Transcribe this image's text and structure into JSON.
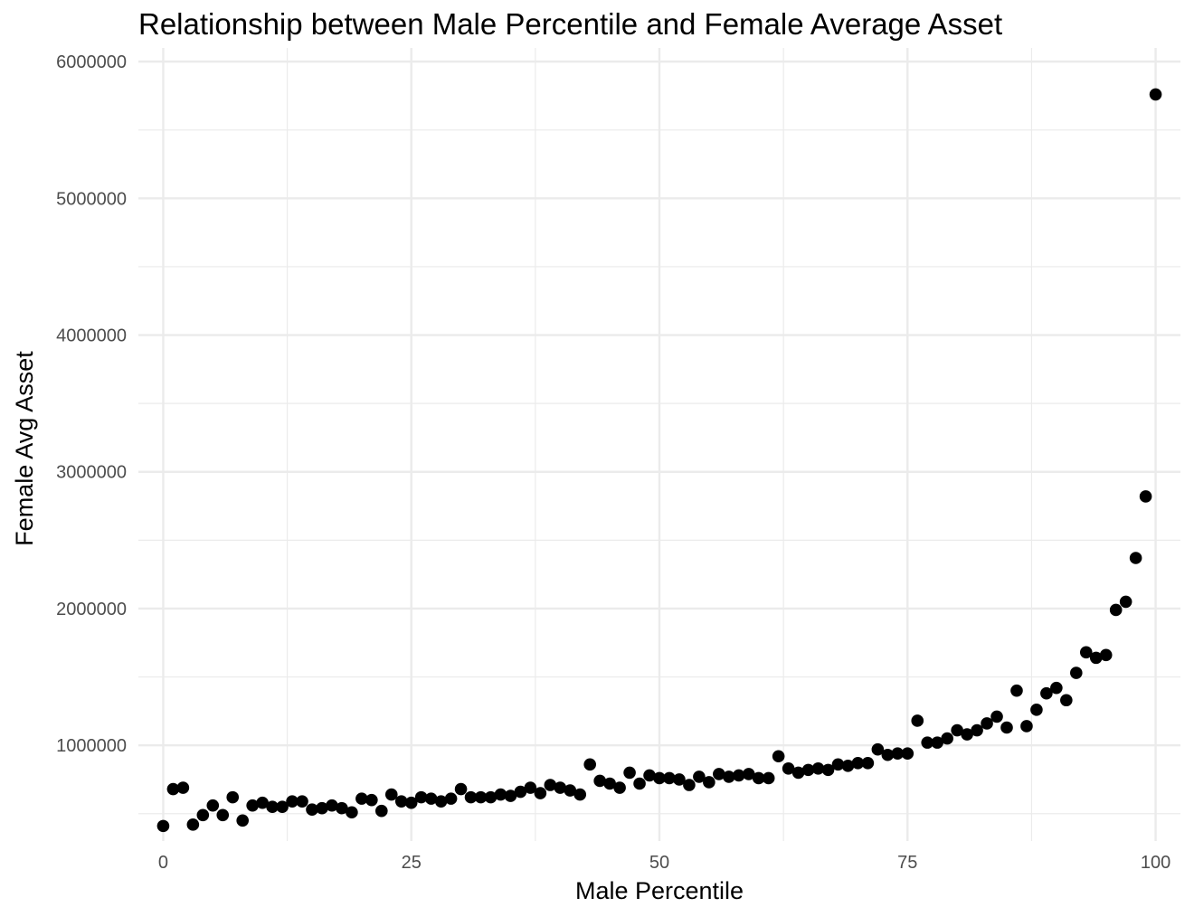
{
  "chart_data": {
    "type": "scatter",
    "title": "Relationship between Male Percentile and Female Average Asset",
    "xlabel": "Male Percentile",
    "ylabel": "Female Avg Asset",
    "xlim": [
      -2.5,
      102.5
    ],
    "ylim": [
      300000,
      6100000
    ],
    "x_ticks": [
      0,
      25,
      50,
      75,
      100
    ],
    "x_tick_labels": [
      "0",
      "25",
      "50",
      "75",
      "100"
    ],
    "x_minor_ticks": [
      12.5,
      37.5,
      62.5,
      87.5
    ],
    "y_ticks": [
      1000000,
      2000000,
      3000000,
      4000000,
      5000000,
      6000000
    ],
    "y_tick_labels": [
      "1000000",
      "2000000",
      "3000000",
      "4000000",
      "5000000",
      "6000000"
    ],
    "y_minor_ticks": [
      500000,
      1500000,
      2500000,
      3500000,
      4500000,
      5500000
    ],
    "grid": true,
    "legend": "none",
    "point_color": "#000000",
    "x": [
      0,
      1,
      2,
      3,
      4,
      5,
      6,
      7,
      8,
      9,
      10,
      11,
      12,
      13,
      14,
      15,
      16,
      17,
      18,
      19,
      20,
      21,
      22,
      23,
      24,
      25,
      26,
      27,
      28,
      29,
      30,
      31,
      32,
      33,
      34,
      35,
      36,
      37,
      38,
      39,
      40,
      41,
      42,
      43,
      44,
      45,
      46,
      47,
      48,
      49,
      50,
      51,
      52,
      53,
      54,
      55,
      56,
      57,
      58,
      59,
      60,
      61,
      62,
      63,
      64,
      65,
      66,
      67,
      68,
      69,
      70,
      71,
      72,
      73,
      74,
      75,
      76,
      77,
      78,
      79,
      80,
      81,
      82,
      83,
      84,
      85,
      86,
      87,
      88,
      89,
      90,
      91,
      92,
      93,
      94,
      95,
      96,
      97,
      98,
      99,
      100
    ],
    "y": [
      410000,
      680000,
      690000,
      420000,
      490000,
      560000,
      490000,
      620000,
      450000,
      560000,
      580000,
      550000,
      550000,
      590000,
      590000,
      530000,
      540000,
      560000,
      540000,
      510000,
      610000,
      600000,
      520000,
      640000,
      590000,
      580000,
      620000,
      610000,
      590000,
      610000,
      680000,
      620000,
      620000,
      620000,
      640000,
      630000,
      660000,
      690000,
      650000,
      710000,
      690000,
      670000,
      640000,
      860000,
      740000,
      720000,
      690000,
      800000,
      720000,
      780000,
      760000,
      760000,
      750000,
      710000,
      770000,
      730000,
      790000,
      770000,
      780000,
      790000,
      760000,
      760000,
      920000,
      830000,
      800000,
      820000,
      830000,
      820000,
      860000,
      850000,
      870000,
      870000,
      970000,
      930000,
      940000,
      940000,
      1180000,
      1020000,
      1020000,
      1050000,
      1110000,
      1080000,
      1110000,
      1160000,
      1210000,
      1130000,
      1400000,
      1140000,
      1260000,
      1380000,
      1420000,
      1330000,
      1530000,
      1680000,
      1640000,
      1660000,
      1990000,
      2050000,
      2370000,
      2820000,
      5760000
    ]
  }
}
